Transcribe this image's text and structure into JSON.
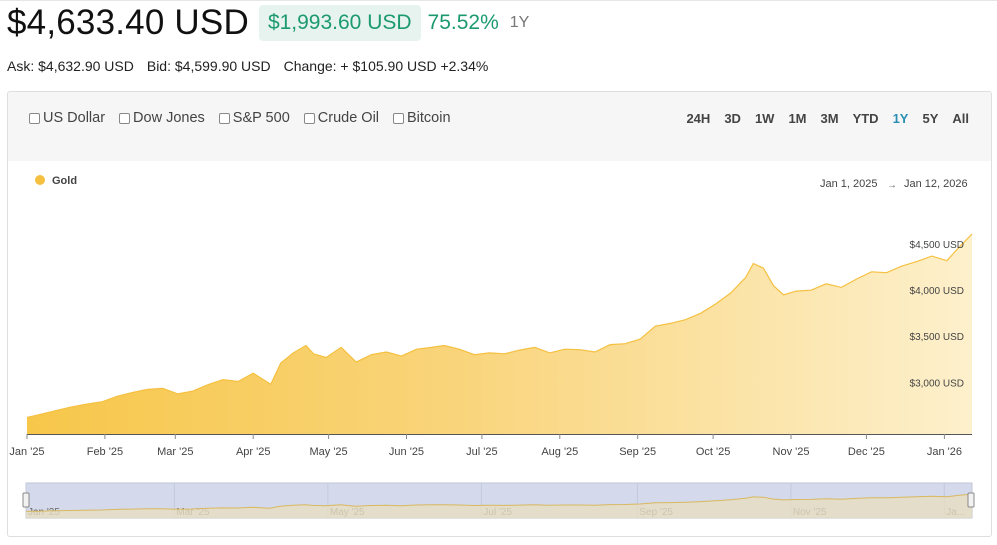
{
  "header": {
    "price": "$4,633.40 USD",
    "change": "$1,993.60 USD",
    "change_pct": "75.52%",
    "period": "1Y"
  },
  "quote": {
    "ask": "Ask: $4,632.90 USD",
    "bid": "Bid: $4,599.90 USD",
    "change": "Change: + $105.90 USD +2.34%"
  },
  "compare_options": [
    "US Dollar",
    "Dow Jones",
    "S&P 500",
    "Crude Oil",
    "Bitcoin"
  ],
  "ranges": [
    "24H",
    "3D",
    "1W",
    "1M",
    "3M",
    "YTD",
    "1Y",
    "5Y",
    "All"
  ],
  "active_range": "1Y",
  "colors": {
    "accent": "#1c9a6f",
    "series": "#f5c040",
    "active": "#2a8fb3"
  },
  "chart_data": {
    "type": "area",
    "legend": "Gold",
    "legend_position": "top-left",
    "date_range": {
      "from": "Jan 1, 2025",
      "arrow": "→",
      "to": "Jan 12, 2026"
    },
    "y_ticks": [
      "$3,000 USD",
      "$3,500 USD",
      "$4,000 USD",
      "$4,500 USD"
    ],
    "y_tick_values": [
      3000,
      3500,
      4000,
      4500
    ],
    "ylim": [
      2450,
      4750
    ],
    "x_ticks": [
      "Jan '25",
      "Feb '25",
      "Mar '25",
      "Apr '25",
      "May '25",
      "Jun '25",
      "Jul '25",
      "Aug '25",
      "Sep '25",
      "Oct '25",
      "Nov '25",
      "Dec '25",
      "Jan '26"
    ],
    "x_tick_dates": [
      "2025-01-01",
      "2025-02-01",
      "2025-03-01",
      "2025-04-01",
      "2025-05-01",
      "2025-06-01",
      "2025-07-01",
      "2025-08-01",
      "2025-09-01",
      "2025-10-01",
      "2025-11-01",
      "2025-12-01",
      "2026-01-01"
    ],
    "navigator_ticks": [
      "Jan '25",
      "Mar '25",
      "May '25",
      "Jul '25",
      "Sep '25",
      "Nov '25",
      "Ja..."
    ],
    "navigator_tick_dates": [
      "2025-01-01",
      "2025-03-01",
      "2025-05-01",
      "2025-07-01",
      "2025-09-01",
      "2025-11-01",
      "2026-01-01"
    ],
    "x_range": [
      "2025-01-01",
      "2026-01-12"
    ],
    "series": [
      {
        "name": "Gold",
        "x": [
          "2025-01-01",
          "2025-01-06",
          "2025-01-12",
          "2025-01-18",
          "2025-01-24",
          "2025-01-31",
          "2025-02-06",
          "2025-02-12",
          "2025-02-18",
          "2025-02-24",
          "2025-03-02",
          "2025-03-08",
          "2025-03-14",
          "2025-03-20",
          "2025-03-26",
          "2025-04-01",
          "2025-04-05",
          "2025-04-08",
          "2025-04-12",
          "2025-04-17",
          "2025-04-22",
          "2025-04-25",
          "2025-04-30",
          "2025-05-06",
          "2025-05-12",
          "2025-05-18",
          "2025-05-24",
          "2025-05-30",
          "2025-06-05",
          "2025-06-11",
          "2025-06-16",
          "2025-06-22",
          "2025-06-28",
          "2025-07-04",
          "2025-07-10",
          "2025-07-16",
          "2025-07-22",
          "2025-07-28",
          "2025-08-03",
          "2025-08-09",
          "2025-08-15",
          "2025-08-21",
          "2025-08-27",
          "2025-09-02",
          "2025-09-08",
          "2025-09-14",
          "2025-09-20",
          "2025-09-26",
          "2025-10-02",
          "2025-10-08",
          "2025-10-14",
          "2025-10-17",
          "2025-10-21",
          "2025-10-25",
          "2025-10-29",
          "2025-11-03",
          "2025-11-09",
          "2025-11-15",
          "2025-11-21",
          "2025-11-27",
          "2025-12-03",
          "2025-12-09",
          "2025-12-15",
          "2025-12-21",
          "2025-12-27",
          "2026-01-02",
          "2026-01-07",
          "2026-01-12"
        ],
        "values": [
          2630,
          2660,
          2700,
          2740,
          2770,
          2800,
          2860,
          2900,
          2935,
          2945,
          2885,
          2915,
          2985,
          3040,
          3020,
          3110,
          3040,
          2990,
          3220,
          3330,
          3410,
          3320,
          3280,
          3390,
          3230,
          3310,
          3340,
          3295,
          3370,
          3390,
          3410,
          3370,
          3310,
          3330,
          3320,
          3360,
          3390,
          3330,
          3370,
          3365,
          3340,
          3420,
          3430,
          3480,
          3620,
          3650,
          3690,
          3760,
          3860,
          3980,
          4150,
          4300,
          4250,
          4060,
          3960,
          4000,
          4010,
          4080,
          4040,
          4130,
          4210,
          4200,
          4270,
          4320,
          4380,
          4330,
          4480,
          4620
        ]
      }
    ]
  }
}
